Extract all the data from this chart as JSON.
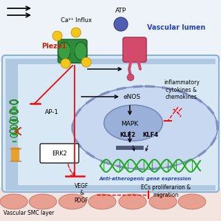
{
  "labels": {
    "vascular_lumen": "Vascular lumen",
    "ATP": "ATP",
    "ca_influx": "Ca²⁺ Influx",
    "piezo1": "Piezo1",
    "eNOS": "eNOS",
    "MAPK": "MAPK",
    "AP1": "AP-1",
    "ERK2": "ERK2",
    "KLF2": "KLF2",
    "KLF4": "KLF4",
    "inflammatory": "inflammatory\ncytokines &\nchemokines",
    "anti_ath": "Anti-atherogenic gene expression",
    "VEGF": "VEGF\n&\nPDGF",
    "ECs": "ECs proliferarion &\nmigration",
    "smc": "Vascular SMC layer"
  }
}
